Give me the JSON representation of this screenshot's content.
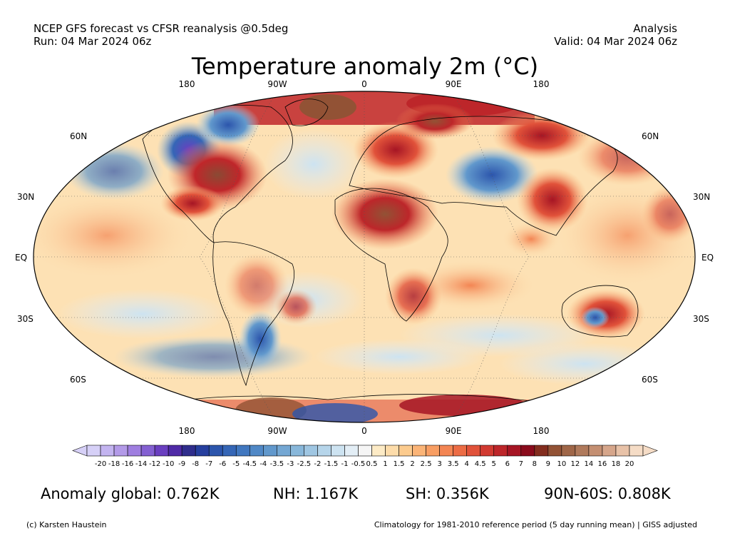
{
  "header": {
    "source_line": "NCEP GFS forecast vs CFSR reanalysis @0.5deg",
    "run_line": "Run: 04 Mar 2024 06z",
    "mode_line": "Analysis",
    "valid_line": "Valid: 04 Mar 2024 06z"
  },
  "title": "Temperature anomaly 2m (°C)",
  "map": {
    "lon_labels_top": [
      "180",
      "90W",
      "0",
      "90E",
      "180"
    ],
    "lon_labels_bottom": [
      "180",
      "90W",
      "0",
      "90E",
      "180"
    ],
    "lat_labels_left": [
      "60N",
      "30N",
      "EQ",
      "30S",
      "60S"
    ],
    "lat_labels_right": [
      "60N",
      "30N",
      "EQ",
      "30S",
      "60S"
    ]
  },
  "colorbar": {
    "ticks": [
      "-20",
      "-18",
      "-16",
      "-14",
      "-12",
      "-10",
      "-9",
      "-8",
      "-7",
      "-6",
      "-5",
      "-4.5",
      "-4",
      "-3.5",
      "-3",
      "-2.5",
      "-2",
      "-1.5",
      "-1",
      "-0.5",
      "0.5",
      "1",
      "1.5",
      "2",
      "2.5",
      "3",
      "3.5",
      "4",
      "4.5",
      "5",
      "6",
      "7",
      "8",
      "9",
      "10",
      "12",
      "14",
      "16",
      "18",
      "20"
    ],
    "colors": [
      "#d6d0f7",
      "#c3b4f0",
      "#b39ae8",
      "#9f7ee0",
      "#8460d2",
      "#6a3fc0",
      "#4f2aa6",
      "#2f2d8c",
      "#263f9e",
      "#2c55ac",
      "#3566b6",
      "#4177bf",
      "#5088c6",
      "#6198cc",
      "#74a7d3",
      "#88b7da",
      "#9fc6e2",
      "#b6d5ea",
      "#cde3f1",
      "#e3eef6",
      "#f5f5f5",
      "#fdebc6",
      "#fddcaa",
      "#fccb8e",
      "#fbb477",
      "#f89e63",
      "#f38553",
      "#ec6c45",
      "#e1523a",
      "#d13a31",
      "#bd262a",
      "#a61524",
      "#8a0b1c",
      "#832d1e",
      "#925235",
      "#9f6648",
      "#b07a5c",
      "#c48f72",
      "#d6a68b",
      "#e8c2a8",
      "#f5dcc6"
    ]
  },
  "stats": {
    "global": "Anomaly global: 0.762K",
    "nh": "NH: 1.167K",
    "sh": "SH: 0.356K",
    "arctic": "90N-60S: 0.808K"
  },
  "footer": {
    "credit": "(c) Karsten Haustein",
    "note": "Climatology for 1981-2010 reference period (5 day running mean) | GISS adjusted"
  }
}
